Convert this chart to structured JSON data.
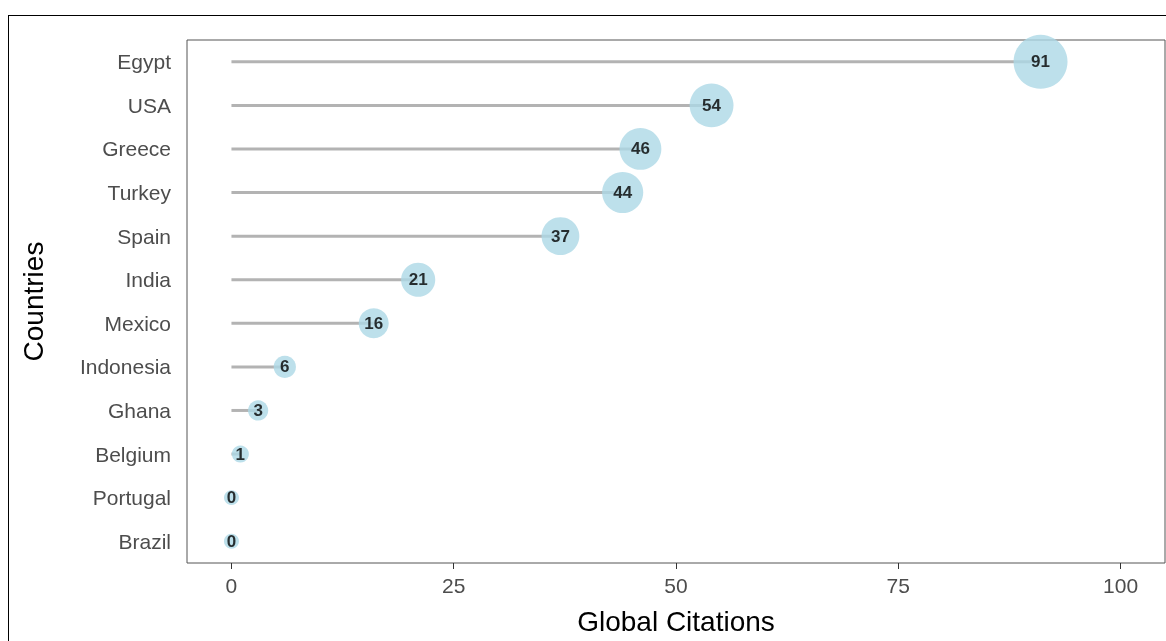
{
  "chart_data": {
    "type": "lollipop",
    "orientation": "horizontal",
    "xlabel": "Global Citations",
    "ylabel": "Countries",
    "categories": [
      "Egypt",
      "USA",
      "Greece",
      "Turkey",
      "Spain",
      "India",
      "Mexico",
      "Indonesia",
      "Ghana",
      "Belgium",
      "Portugal",
      "Brazil"
    ],
    "values": [
      91,
      54,
      46,
      44,
      37,
      21,
      16,
      6,
      3,
      1,
      0,
      0
    ],
    "sizes": [
      1,
      0.66,
      0.6,
      0.58,
      0.49,
      0.4,
      0.31,
      0.17,
      0.14,
      0.1,
      0.077,
      0.077
    ],
    "color": "#add8e6",
    "xlim": [
      -5,
      105
    ],
    "xticks": [
      0,
      25,
      50,
      75,
      100
    ],
    "data_labels": true,
    "grid": false
  }
}
